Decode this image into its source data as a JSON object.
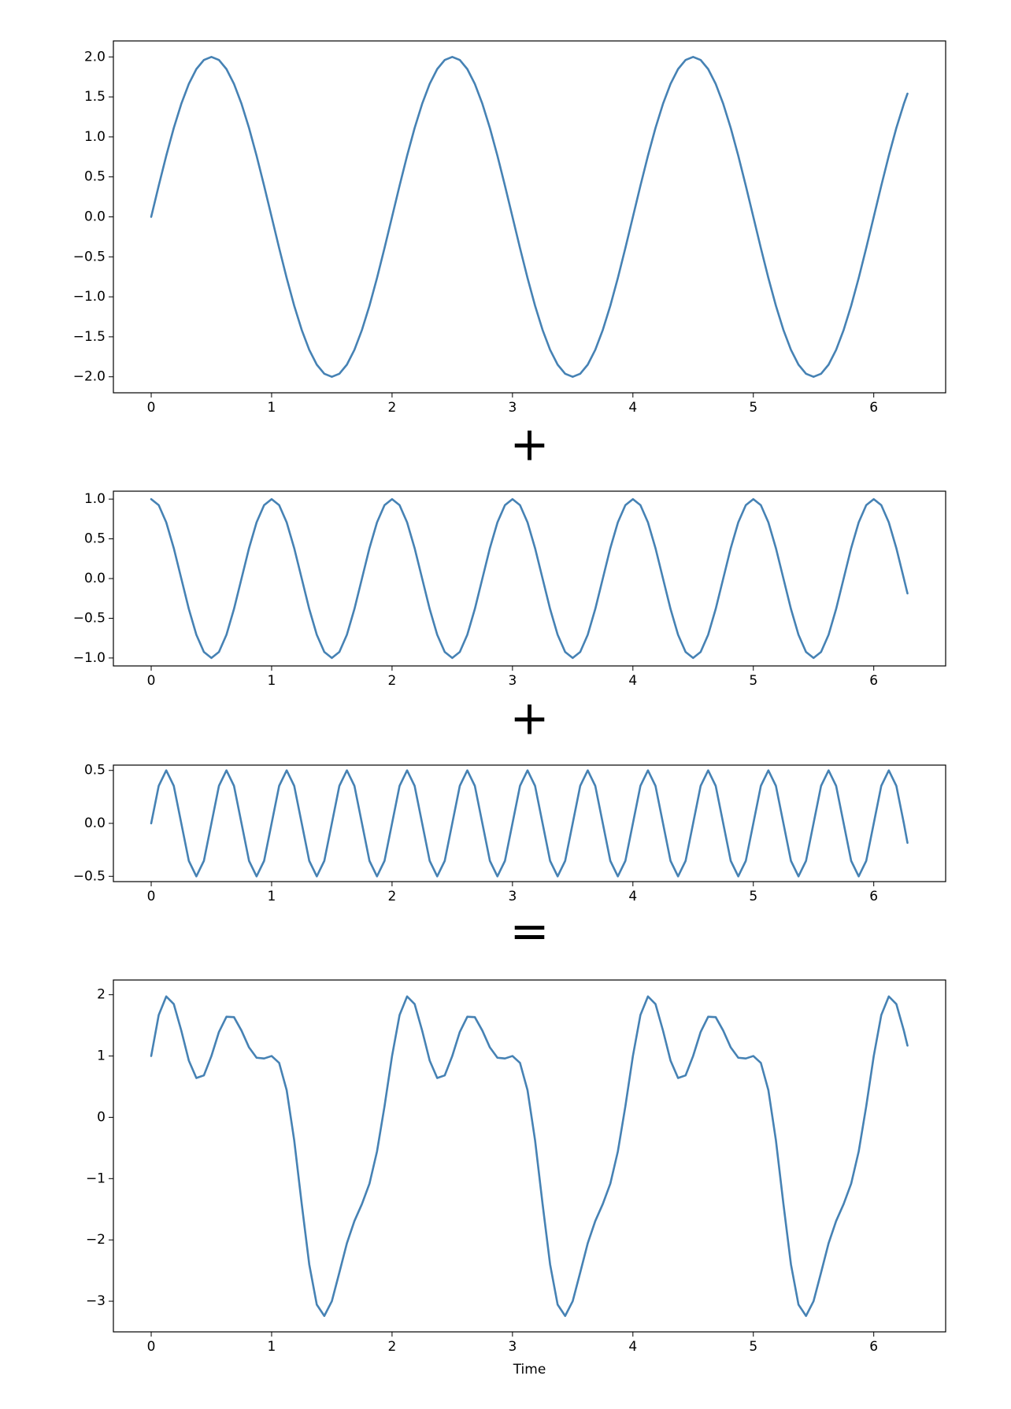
{
  "operators": [
    "+",
    "+",
    "="
  ],
  "chart_data": [
    {
      "type": "line",
      "color": "#4682b4",
      "x": [
        0,
        0.0625,
        0.125,
        0.1875,
        0.25,
        0.3125,
        0.375,
        0.4375,
        0.5,
        0.5625,
        0.625,
        0.6875,
        0.75,
        0.8125,
        0.875,
        0.9375,
        1,
        1.0625,
        1.125,
        1.1875,
        1.25,
        1.3125,
        1.375,
        1.4375,
        1.5,
        1.5625,
        1.625,
        1.6875,
        1.75,
        1.8125,
        1.875,
        1.9375,
        2,
        2.0625,
        2.125,
        2.1875,
        2.25,
        2.3125,
        2.375,
        2.4375,
        2.5,
        2.5625,
        2.625,
        2.6875,
        2.75,
        2.8125,
        2.875,
        2.9375,
        3,
        3.0625,
        3.125,
        3.1875,
        3.25,
        3.3125,
        3.375,
        3.4375,
        3.5,
        3.5625,
        3.625,
        3.6875,
        3.75,
        3.8125,
        3.875,
        3.9375,
        4,
        4.0625,
        4.125,
        4.1875,
        4.25,
        4.3125,
        4.375,
        4.4375,
        4.5,
        4.5625,
        4.625,
        4.6875,
        4.75,
        4.8125,
        4.875,
        4.9375,
        5,
        5.0625,
        5.125,
        5.1875,
        5.25,
        5.3125,
        5.375,
        5.4375,
        5.5,
        5.5625,
        5.625,
        5.6875,
        5.75,
        5.8125,
        5.875,
        5.9375,
        6,
        6.0625,
        6.125,
        6.1875,
        6.25,
        6.28
      ],
      "values": [
        0,
        0.39,
        0.765,
        1.111,
        1.414,
        1.663,
        1.848,
        1.962,
        2,
        1.962,
        1.848,
        1.663,
        1.414,
        1.111,
        0.765,
        0.39,
        0,
        -0.39,
        -0.765,
        -1.111,
        -1.414,
        -1.663,
        -1.848,
        -1.962,
        -2,
        -1.962,
        -1.848,
        -1.663,
        -1.414,
        -1.111,
        -0.765,
        -0.39,
        0,
        0.39,
        0.765,
        1.111,
        1.414,
        1.663,
        1.848,
        1.962,
        2,
        1.962,
        1.848,
        1.663,
        1.414,
        1.111,
        0.765,
        0.39,
        0,
        -0.39,
        -0.765,
        -1.111,
        -1.414,
        -1.663,
        -1.848,
        -1.962,
        -2,
        -1.962,
        -1.848,
        -1.663,
        -1.414,
        -1.111,
        -0.765,
        -0.39,
        0,
        0.39,
        0.765,
        1.111,
        1.414,
        1.663,
        1.848,
        1.962,
        2,
        1.962,
        1.848,
        1.663,
        1.414,
        1.111,
        0.765,
        0.39,
        0,
        -0.39,
        -0.765,
        -1.111,
        -1.414,
        -1.663,
        -1.848,
        -1.962,
        -2,
        -1.962,
        -1.848,
        -1.663,
        -1.414,
        -1.111,
        -0.765,
        -0.39,
        0,
        0.39,
        0.765,
        1.111,
        1.414,
        1.541
      ],
      "xlim": [
        -0.314,
        6.597
      ],
      "xticks": [
        0,
        1,
        2,
        3,
        4,
        5,
        6
      ],
      "ylim": [
        -2.2,
        2.2
      ],
      "yticks": [
        {
          "value": -2,
          "label": "−2.0"
        },
        {
          "value": -1.5,
          "label": "−1.5"
        },
        {
          "value": -1,
          "label": "−1.0"
        },
        {
          "value": -0.5,
          "label": "−0.5"
        },
        {
          "value": 0,
          "label": "0.0"
        },
        {
          "value": 0.5,
          "label": "0.5"
        },
        {
          "value": 1,
          "label": "1.0"
        },
        {
          "value": 1.5,
          "label": "1.5"
        },
        {
          "value": 2,
          "label": "2.0"
        }
      ]
    },
    {
      "type": "line",
      "color": "#4682b4",
      "x": [
        0,
        0.0625,
        0.125,
        0.1875,
        0.25,
        0.3125,
        0.375,
        0.4375,
        0.5,
        0.5625,
        0.625,
        0.6875,
        0.75,
        0.8125,
        0.875,
        0.9375,
        1,
        1.0625,
        1.125,
        1.1875,
        1.25,
        1.3125,
        1.375,
        1.4375,
        1.5,
        1.5625,
        1.625,
        1.6875,
        1.75,
        1.8125,
        1.875,
        1.9375,
        2,
        2.0625,
        2.125,
        2.1875,
        2.25,
        2.3125,
        2.375,
        2.4375,
        2.5,
        2.5625,
        2.625,
        2.6875,
        2.75,
        2.8125,
        2.875,
        2.9375,
        3,
        3.0625,
        3.125,
        3.1875,
        3.25,
        3.3125,
        3.375,
        3.4375,
        3.5,
        3.5625,
        3.625,
        3.6875,
        3.75,
        3.8125,
        3.875,
        3.9375,
        4,
        4.0625,
        4.125,
        4.1875,
        4.25,
        4.3125,
        4.375,
        4.4375,
        4.5,
        4.5625,
        4.625,
        4.6875,
        4.75,
        4.8125,
        4.875,
        4.9375,
        5,
        5.0625,
        5.125,
        5.1875,
        5.25,
        5.3125,
        5.375,
        5.4375,
        5.5,
        5.5625,
        5.625,
        5.6875,
        5.75,
        5.8125,
        5.875,
        5.9375,
        6,
        6.0625,
        6.125,
        6.1875,
        6.25,
        6.28
      ],
      "values": [
        1,
        0.924,
        0.707,
        0.383,
        0,
        -0.383,
        -0.707,
        -0.924,
        -1,
        -0.924,
        -0.707,
        -0.383,
        0,
        0.383,
        0.707,
        0.924,
        1,
        0.924,
        0.707,
        0.383,
        0,
        -0.383,
        -0.707,
        -0.924,
        -1,
        -0.924,
        -0.707,
        -0.383,
        0,
        0.383,
        0.707,
        0.924,
        1,
        0.924,
        0.707,
        0.383,
        0,
        -0.383,
        -0.707,
        -0.924,
        -1,
        -0.924,
        -0.707,
        -0.383,
        0,
        0.383,
        0.707,
        0.924,
        1,
        0.924,
        0.707,
        0.383,
        0,
        -0.383,
        -0.707,
        -0.924,
        -1,
        -0.924,
        -0.707,
        -0.383,
        0,
        0.383,
        0.707,
        0.924,
        1,
        0.924,
        0.707,
        0.383,
        0,
        -0.383,
        -0.707,
        -0.924,
        -1,
        -0.924,
        -0.707,
        -0.383,
        0,
        0.383,
        0.707,
        0.924,
        1,
        0.924,
        0.707,
        0.383,
        0,
        -0.383,
        -0.707,
        -0.924,
        -1,
        -0.924,
        -0.707,
        -0.383,
        0,
        0.383,
        0.707,
        0.924,
        1,
        0.924,
        0.707,
        0.383,
        0,
        -0.187
      ],
      "xlim": [
        -0.314,
        6.597
      ],
      "xticks": [
        0,
        1,
        2,
        3,
        4,
        5,
        6
      ],
      "ylim": [
        -1.1,
        1.1
      ],
      "yticks": [
        {
          "value": -1,
          "label": "−1.0"
        },
        {
          "value": -0.5,
          "label": "−0.5"
        },
        {
          "value": 0,
          "label": "0.0"
        },
        {
          "value": 0.5,
          "label": "0.5"
        },
        {
          "value": 1,
          "label": "1.0"
        }
      ]
    },
    {
      "type": "line",
      "color": "#4682b4",
      "x": [
        0,
        0.0625,
        0.125,
        0.1875,
        0.25,
        0.3125,
        0.375,
        0.4375,
        0.5,
        0.5625,
        0.625,
        0.6875,
        0.75,
        0.8125,
        0.875,
        0.9375,
        1,
        1.0625,
        1.125,
        1.1875,
        1.25,
        1.3125,
        1.375,
        1.4375,
        1.5,
        1.5625,
        1.625,
        1.6875,
        1.75,
        1.8125,
        1.875,
        1.9375,
        2,
        2.0625,
        2.125,
        2.1875,
        2.25,
        2.3125,
        2.375,
        2.4375,
        2.5,
        2.5625,
        2.625,
        2.6875,
        2.75,
        2.8125,
        2.875,
        2.9375,
        3,
        3.0625,
        3.125,
        3.1875,
        3.25,
        3.3125,
        3.375,
        3.4375,
        3.5,
        3.5625,
        3.625,
        3.6875,
        3.75,
        3.8125,
        3.875,
        3.9375,
        4,
        4.0625,
        4.125,
        4.1875,
        4.25,
        4.3125,
        4.375,
        4.4375,
        4.5,
        4.5625,
        4.625,
        4.6875,
        4.75,
        4.8125,
        4.875,
        4.9375,
        5,
        5.0625,
        5.125,
        5.1875,
        5.25,
        5.3125,
        5.375,
        5.4375,
        5.5,
        5.5625,
        5.625,
        5.6875,
        5.75,
        5.8125,
        5.875,
        5.9375,
        6,
        6.0625,
        6.125,
        6.1875,
        6.25,
        6.28
      ],
      "values": [
        0,
        0.354,
        0.5,
        0.354,
        0,
        -0.354,
        -0.5,
        -0.354,
        0,
        0.354,
        0.5,
        0.354,
        0,
        -0.354,
        -0.5,
        -0.354,
        0,
        0.354,
        0.5,
        0.354,
        0,
        -0.354,
        -0.5,
        -0.354,
        0,
        0.354,
        0.5,
        0.354,
        0,
        -0.354,
        -0.5,
        -0.354,
        0,
        0.354,
        0.5,
        0.354,
        0,
        -0.354,
        -0.5,
        -0.354,
        0,
        0.354,
        0.5,
        0.354,
        0,
        -0.354,
        -0.5,
        -0.354,
        0,
        0.354,
        0.5,
        0.354,
        0,
        -0.354,
        -0.5,
        -0.354,
        0,
        0.354,
        0.5,
        0.354,
        0,
        -0.354,
        -0.5,
        -0.354,
        0,
        0.354,
        0.5,
        0.354,
        0,
        -0.354,
        -0.5,
        -0.354,
        0,
        0.354,
        0.5,
        0.354,
        0,
        -0.354,
        -0.5,
        -0.354,
        0,
        0.354,
        0.5,
        0.354,
        0,
        -0.354,
        -0.5,
        -0.354,
        0,
        0.354,
        0.5,
        0.354,
        0,
        -0.354,
        -0.5,
        -0.354,
        0,
        0.354,
        0.5,
        0.354,
        0,
        -0.184
      ],
      "xlim": [
        -0.314,
        6.597
      ],
      "xticks": [
        0,
        1,
        2,
        3,
        4,
        5,
        6
      ],
      "ylim": [
        -0.55,
        0.55
      ],
      "yticks": [
        {
          "value": -0.5,
          "label": "−0.5"
        },
        {
          "value": 0,
          "label": "0.0"
        },
        {
          "value": 0.5,
          "label": "0.5"
        }
      ]
    },
    {
      "type": "line",
      "color": "#4682b4",
      "x_label": "Time",
      "x": [
        0,
        0.0625,
        0.125,
        0.1875,
        0.25,
        0.3125,
        0.375,
        0.4375,
        0.5,
        0.5625,
        0.625,
        0.6875,
        0.75,
        0.8125,
        0.875,
        0.9375,
        1,
        1.0625,
        1.125,
        1.1875,
        1.25,
        1.3125,
        1.375,
        1.4375,
        1.5,
        1.5625,
        1.625,
        1.6875,
        1.75,
        1.8125,
        1.875,
        1.9375,
        2,
        2.0625,
        2.125,
        2.1875,
        2.25,
        2.3125,
        2.375,
        2.4375,
        2.5,
        2.5625,
        2.625,
        2.6875,
        2.75,
        2.8125,
        2.875,
        2.9375,
        3,
        3.0625,
        3.125,
        3.1875,
        3.25,
        3.3125,
        3.375,
        3.4375,
        3.5,
        3.5625,
        3.625,
        3.6875,
        3.75,
        3.8125,
        3.875,
        3.9375,
        4,
        4.0625,
        4.125,
        4.1875,
        4.25,
        4.3125,
        4.375,
        4.4375,
        4.5,
        4.5625,
        4.625,
        4.6875,
        4.75,
        4.8125,
        4.875,
        4.9375,
        5,
        5.0625,
        5.125,
        5.1875,
        5.25,
        5.3125,
        5.375,
        5.4375,
        5.5,
        5.5625,
        5.625,
        5.6875,
        5.75,
        5.8125,
        5.875,
        5.9375,
        6,
        6.0625,
        6.125,
        6.1875,
        6.25,
        6.28
      ],
      "values": [
        1,
        1.668,
        1.972,
        1.848,
        1.414,
        0.926,
        0.641,
        0.684,
        1,
        1.392,
        1.641,
        1.634,
        1.414,
        1.14,
        0.972,
        0.96,
        1,
        0.888,
        0.442,
        -0.374,
        -1.414,
        -2.4,
        -3.055,
        -3.24,
        -3,
        -2.532,
        -2.055,
        -1.692,
        -1.414,
        -1.082,
        -0.558,
        0.18,
        1,
        1.668,
        1.972,
        1.848,
        1.414,
        0.926,
        0.641,
        0.684,
        1,
        1.392,
        1.641,
        1.634,
        1.414,
        1.14,
        0.972,
        0.96,
        1,
        0.888,
        0.442,
        -0.374,
        -1.414,
        -2.4,
        -3.055,
        -3.24,
        -3,
        -2.532,
        -2.055,
        -1.692,
        -1.414,
        -1.082,
        -0.558,
        0.18,
        1,
        1.668,
        1.972,
        1.848,
        1.414,
        0.926,
        0.641,
        0.684,
        1,
        1.392,
        1.641,
        1.634,
        1.414,
        1.14,
        0.972,
        0.96,
        1,
        0.888,
        0.442,
        -0.374,
        -1.414,
        -2.4,
        -3.055,
        -3.24,
        -3,
        -2.532,
        -2.055,
        -1.692,
        -1.414,
        -1.082,
        -0.558,
        0.18,
        1,
        1.668,
        1.972,
        1.848,
        1.414,
        1.17
      ],
      "xlim": [
        -0.314,
        6.597
      ],
      "xticks": [
        0,
        1,
        2,
        3,
        4,
        5,
        6
      ],
      "ylim": [
        -3.5,
        2.24
      ],
      "yticks": [
        {
          "value": -3,
          "label": "−3"
        },
        {
          "value": -2,
          "label": "−2"
        },
        {
          "value": -1,
          "label": "−1"
        },
        0,
        1,
        2
      ]
    }
  ]
}
